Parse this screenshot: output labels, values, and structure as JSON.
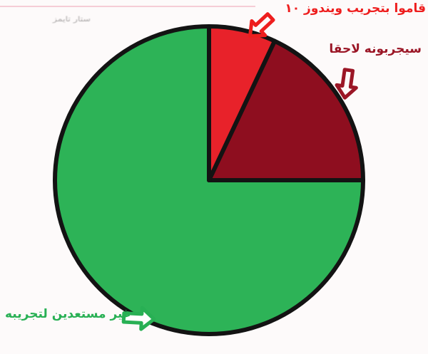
{
  "page": {
    "background": "#fdfafa",
    "top_line_color": "#f3c4cf",
    "watermark_text": "ستار تايمز",
    "watermark_color": "#a8a5a5"
  },
  "chart_data": {
    "type": "pie",
    "title": "",
    "labels": [
      "قاموا بتجريب ويندوز ١٠",
      "سيجربونه لاحقا",
      "غير مستعدين لتجريبه"
    ],
    "values": [
      7,
      18,
      75
    ],
    "unit": "percent (estimated from slice angles: ~25°, ~65°, 270°)",
    "colors": [
      "#e8222a",
      "#8e0e1f",
      "#2db357"
    ],
    "outline_color": "#131313",
    "start_angle_deg": 0,
    "direction": "clockwise",
    "legend_position": "none",
    "annotations": [
      {
        "text": "قاموا بتجريب ويندوز ١٠",
        "color": "#ee1e1e",
        "arrow": "down-left",
        "position": "top-right"
      },
      {
        "text": "سيجربونه لاحقا",
        "color": "#9b1626",
        "arrow": "down",
        "position": "right"
      },
      {
        "text": "غير مستعدين لتجريبه",
        "color": "#28b054",
        "arrow": "right",
        "position": "bottom-left"
      }
    ]
  }
}
